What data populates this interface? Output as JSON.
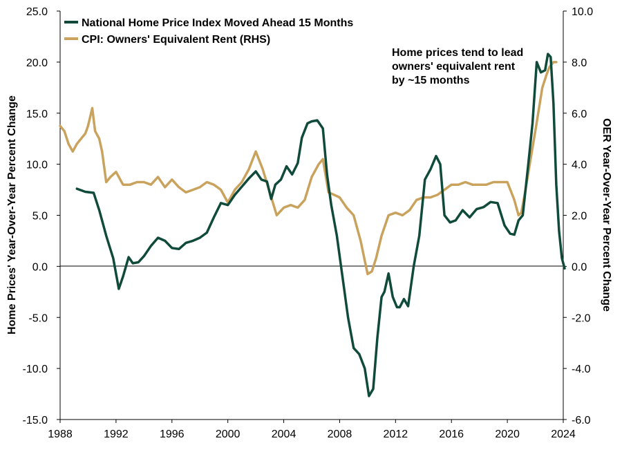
{
  "chart_data": {
    "type": "line",
    "title": "",
    "xlim": [
      1988,
      2024
    ],
    "x_ticks": [
      "1988",
      "1992",
      "1996",
      "2000",
      "2004",
      "2008",
      "2012",
      "2016",
      "2020",
      "2024"
    ],
    "ylabel": "Home Prices' Year-Over-Year Percent Change",
    "ylim": [
      -15,
      25
    ],
    "y_ticks": [
      "25.0",
      "20.0",
      "15.0",
      "10.0",
      "5.0",
      "0.0",
      "-5.0",
      "-10.0",
      "-15.0"
    ],
    "y2label": "OER Year-Over-Year Percent Change",
    "y2lim": [
      -6,
      10
    ],
    "y2_ticks": [
      "10.0",
      "8.0",
      "6.0",
      "4.0",
      "2.0",
      "0.0",
      "-2.0",
      "-4.0",
      "-6.0"
    ],
    "grid": false,
    "legend_position": "top-left",
    "annotation": [
      "Home prices tend to lead",
      "owners' equivalent rent",
      "by ~15 months"
    ],
    "series": [
      {
        "name": "National Home Price Index Moved Ahead 15 Months",
        "axis": "left",
        "color": "#0f4a3a",
        "x": [
          1989.2,
          1989.8,
          1990.4,
          1990.8,
          1991.3,
          1991.8,
          1992.2,
          1992.5,
          1992.9,
          1993.2,
          1993.6,
          1994.0,
          1994.5,
          1995.0,
          1995.5,
          1996.0,
          1996.5,
          1997.0,
          1997.5,
          1998.0,
          1998.5,
          1999.0,
          1999.5,
          2000.0,
          2000.5,
          2001.0,
          2001.5,
          2002.0,
          2002.4,
          2002.8,
          2003.1,
          2003.4,
          2003.8,
          2004.2,
          2004.6,
          2005.0,
          2005.3,
          2005.7,
          2006.0,
          2006.4,
          2006.8,
          2007.1,
          2007.4,
          2007.8,
          2008.2,
          2008.6,
          2009.0,
          2009.4,
          2009.8,
          2010.1,
          2010.4,
          2010.7,
          2011.0,
          2011.2,
          2011.5,
          2011.8,
          2012.1,
          2012.3,
          2012.6,
          2012.9,
          2013.3,
          2013.7,
          2014.1,
          2014.5,
          2014.9,
          2015.2,
          2015.5,
          2015.9,
          2016.3,
          2016.8,
          2017.3,
          2017.8,
          2018.3,
          2018.8,
          2019.3,
          2019.8,
          2020.2,
          2020.5,
          2020.8,
          2021.1,
          2021.5,
          2021.8,
          2022.1,
          2022.4,
          2022.7,
          2022.9,
          2023.1,
          2023.3,
          2023.5,
          2023.7,
          2023.9,
          2024.1
        ],
        "values": [
          7.6,
          7.3,
          7.2,
          5.5,
          3.0,
          0.8,
          -2.2,
          -1.0,
          0.9,
          0.3,
          0.4,
          1.0,
          2.0,
          2.8,
          2.5,
          1.8,
          1.7,
          2.3,
          2.5,
          2.8,
          3.3,
          4.8,
          6.2,
          6.0,
          7.0,
          7.8,
          8.6,
          9.3,
          8.5,
          8.3,
          6.6,
          8.0,
          8.5,
          9.8,
          9.0,
          10.1,
          12.6,
          14.0,
          14.2,
          14.3,
          13.5,
          9.0,
          6.0,
          3.0,
          -1.0,
          -5.0,
          -8.0,
          -8.6,
          -10.0,
          -12.7,
          -12.0,
          -7.0,
          -3.0,
          -2.5,
          -0.7,
          -3.0,
          -4.0,
          -4.0,
          -3.2,
          -3.9,
          0.0,
          3.0,
          8.5,
          9.5,
          10.8,
          10.0,
          5.0,
          4.3,
          4.5,
          5.5,
          4.8,
          5.6,
          5.8,
          6.3,
          6.2,
          4.0,
          3.2,
          3.1,
          4.5,
          5.0,
          10.0,
          14.0,
          20.0,
          19.0,
          19.2,
          20.8,
          20.5,
          16.0,
          8.0,
          3.5,
          0.8,
          -0.2
        ]
      },
      {
        "name": "CPI: Owners' Equivalent Rent (RHS)",
        "axis": "right",
        "color": "#c9a35e",
        "x": [
          1988.0,
          1988.3,
          1988.6,
          1988.9,
          1989.2,
          1989.5,
          1989.8,
          1990.0,
          1990.3,
          1990.5,
          1990.8,
          1991.0,
          1991.3,
          1991.6,
          1992.0,
          1992.5,
          1993.0,
          1993.5,
          1994.0,
          1994.5,
          1995.0,
          1995.5,
          1996.0,
          1996.5,
          1997.0,
          1997.5,
          1998.0,
          1998.5,
          1999.0,
          1999.5,
          2000.0,
          2000.5,
          2001.0,
          2001.5,
          2002.0,
          2002.5,
          2003.0,
          2003.5,
          2004.0,
          2004.5,
          2005.0,
          2005.5,
          2006.0,
          2006.5,
          2006.8,
          2007.2,
          2007.6,
          2008.0,
          2008.5,
          2009.0,
          2009.5,
          2010.0,
          2010.3,
          2010.6,
          2011.0,
          2011.5,
          2012.0,
          2012.5,
          2013.0,
          2013.5,
          2014.0,
          2014.5,
          2015.0,
          2015.5,
          2016.0,
          2016.5,
          2017.0,
          2017.5,
          2018.0,
          2018.5,
          2019.0,
          2019.5,
          2020.0,
          2020.5,
          2020.8,
          2021.0,
          2021.3,
          2021.6,
          2022.0,
          2022.5,
          2022.8,
          2023.0,
          2023.3,
          2023.5
        ],
        "values": [
          5.5,
          5.3,
          4.8,
          4.5,
          4.8,
          5.0,
          5.2,
          5.5,
          6.2,
          5.3,
          5.0,
          4.5,
          3.3,
          3.5,
          3.7,
          3.2,
          3.2,
          3.3,
          3.3,
          3.2,
          3.5,
          3.1,
          3.4,
          3.1,
          2.9,
          3.0,
          3.1,
          3.3,
          3.2,
          3.0,
          2.5,
          3.0,
          3.3,
          3.8,
          4.5,
          3.8,
          2.9,
          2.0,
          2.3,
          2.4,
          2.3,
          2.6,
          3.5,
          4.0,
          4.2,
          2.9,
          2.8,
          2.7,
          2.3,
          2.0,
          1.0,
          -0.3,
          -0.2,
          0.3,
          1.2,
          2.0,
          2.1,
          2.0,
          2.2,
          2.6,
          2.7,
          2.7,
          2.8,
          3.0,
          3.2,
          3.2,
          3.3,
          3.2,
          3.2,
          3.2,
          3.3,
          3.3,
          3.3,
          2.6,
          2.0,
          2.1,
          3.0,
          4.0,
          5.3,
          7.0,
          7.5,
          7.8,
          8.0,
          8.0
        ]
      }
    ]
  }
}
